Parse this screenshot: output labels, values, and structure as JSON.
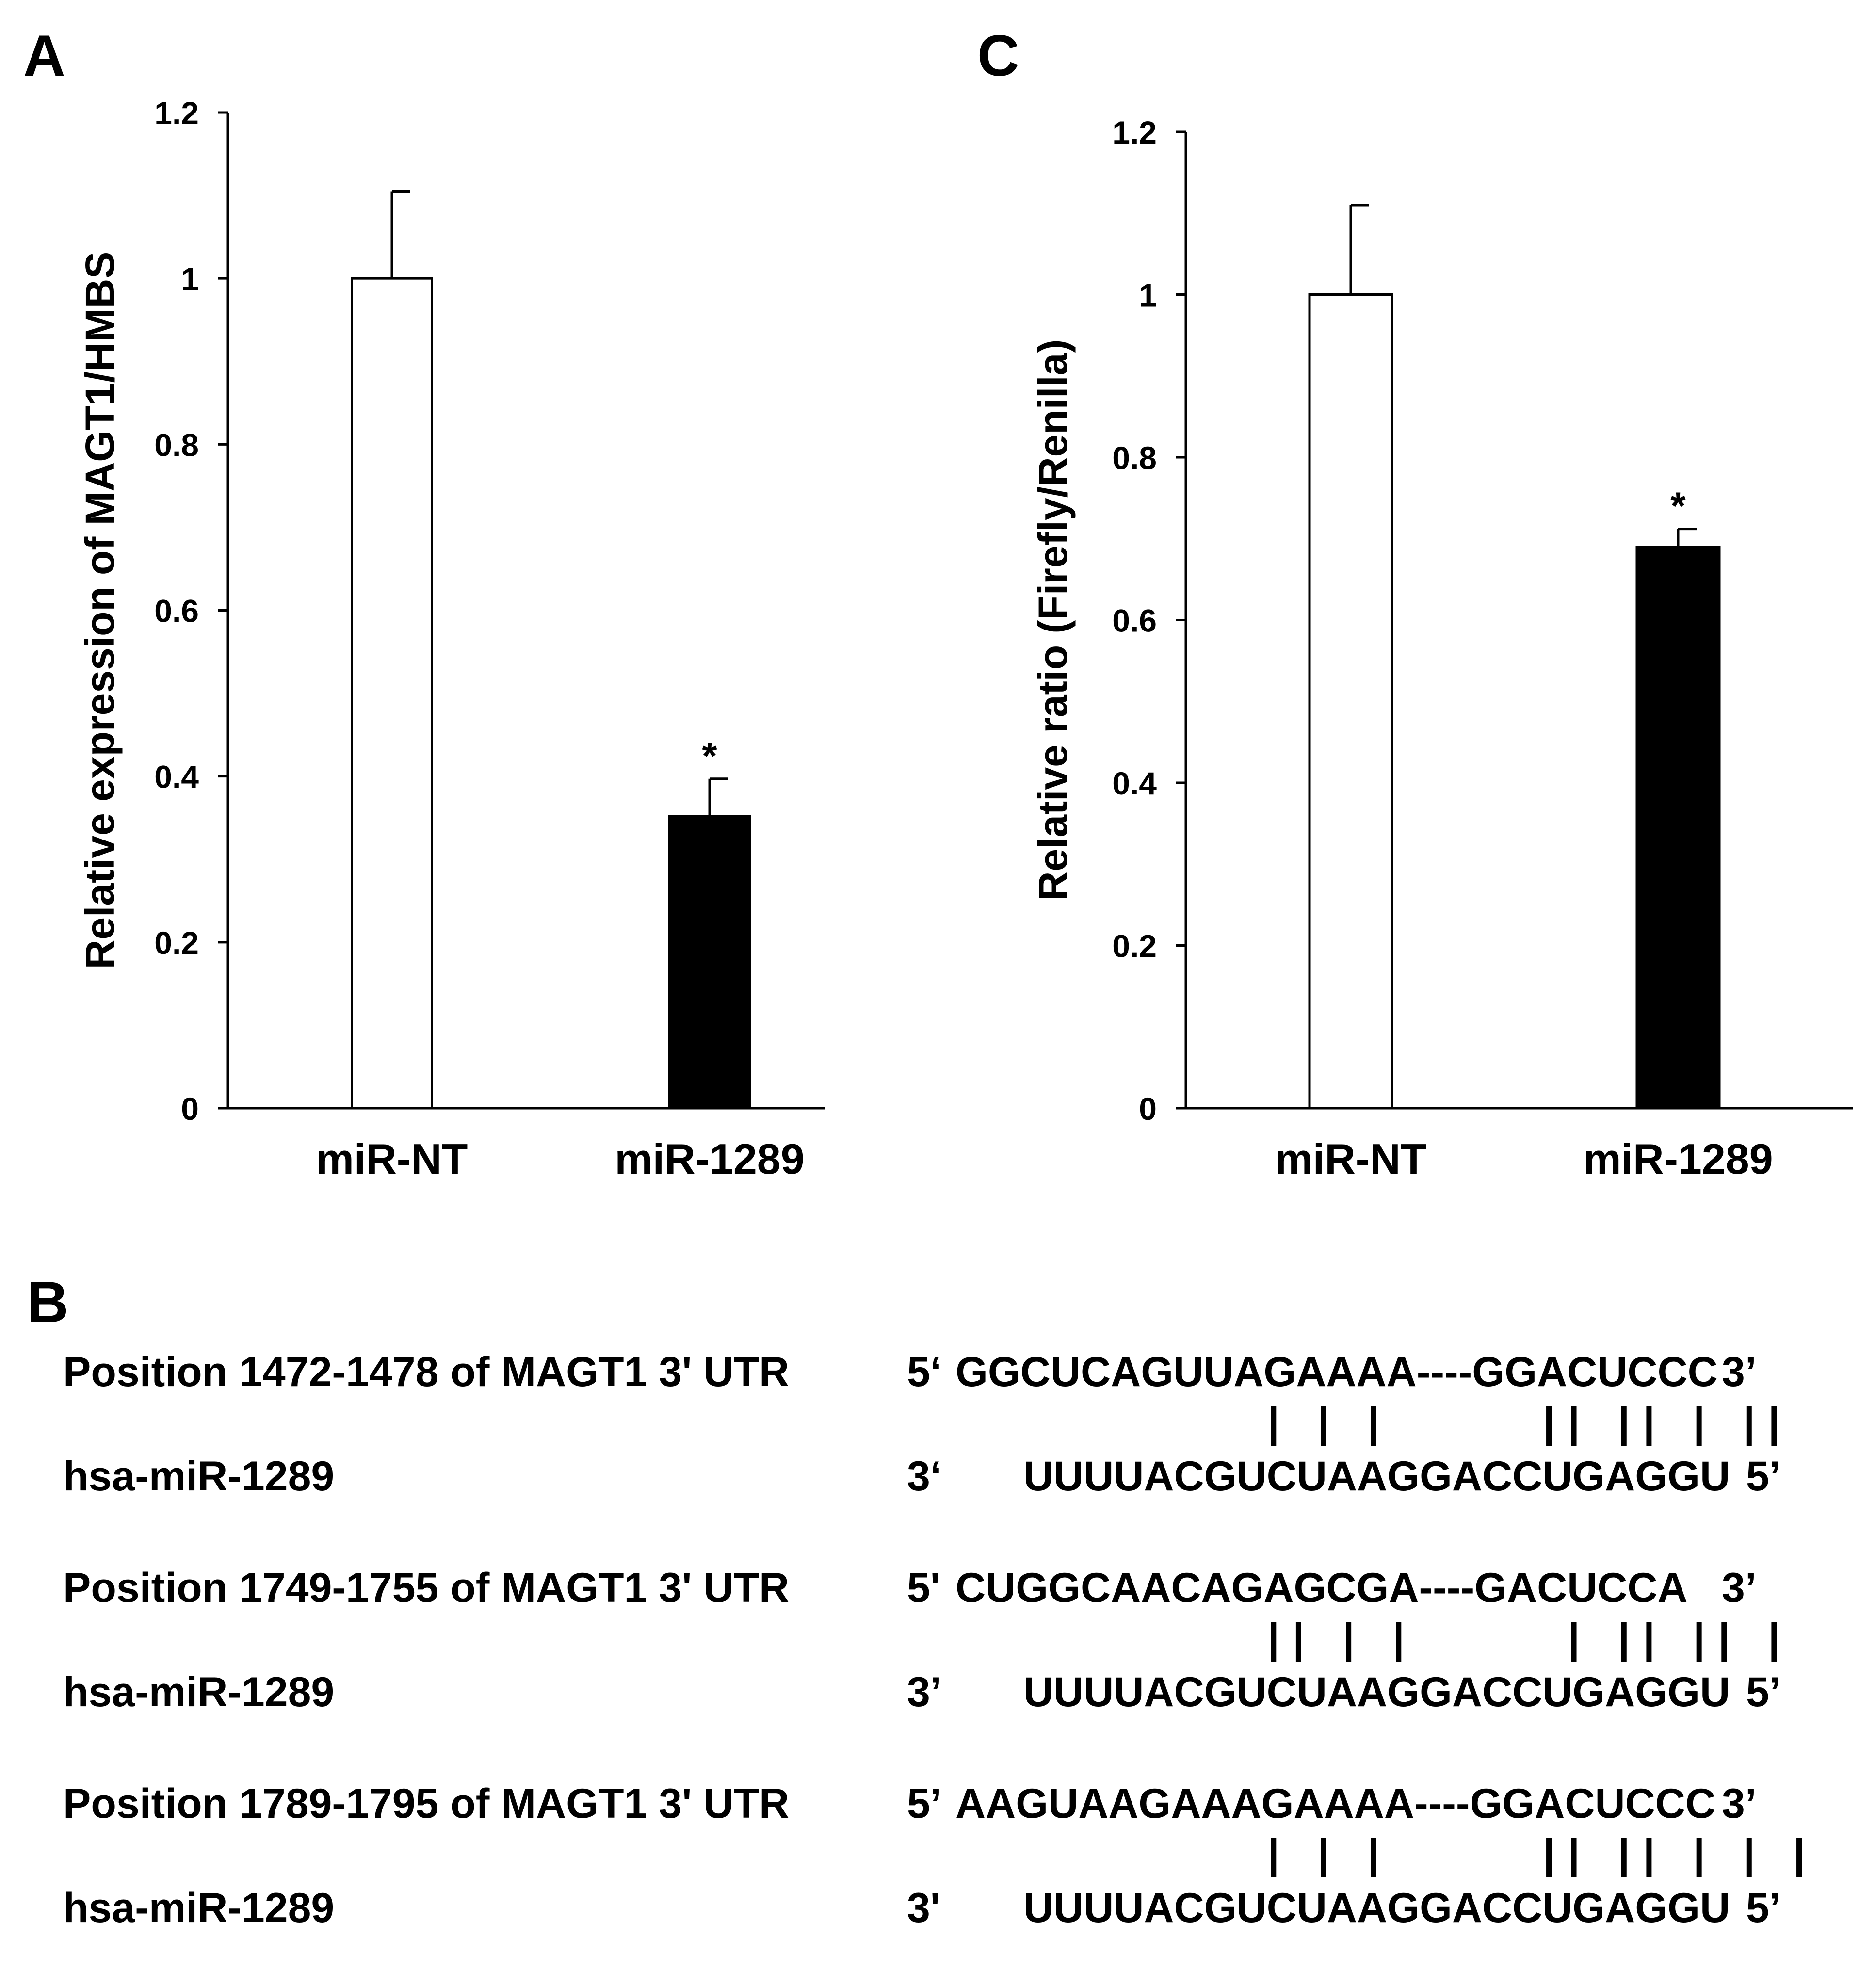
{
  "panels": {
    "a": "A",
    "b": "B",
    "c": "C"
  },
  "chart_data": [
    {
      "type": "bar",
      "panel": "A",
      "categories": [
        "miR-NT",
        "miR-1289"
      ],
      "values": [
        1.0,
        0.352
      ],
      "error_upper": [
        0.105,
        0.045
      ],
      "significance": [
        "",
        "*"
      ],
      "bar_colors": [
        "#ffffff",
        "#000000"
      ],
      "ylabel": "Relative expression of MAGT1/HMBS",
      "ylim": [
        0,
        1.2
      ],
      "yticks": [
        "0",
        "0.2",
        "0.4",
        "0.6",
        "0.8",
        "1",
        "1.2"
      ],
      "ytick_values": [
        0,
        0.2,
        0.4,
        0.6,
        0.8,
        1.0,
        1.2
      ],
      "grid": false
    },
    {
      "type": "bar",
      "panel": "C",
      "categories": [
        "miR-NT",
        "miR-1289"
      ],
      "values": [
        1.0,
        0.69
      ],
      "error_upper": [
        0.11,
        0.022
      ],
      "significance": [
        "",
        "*"
      ],
      "bar_colors": [
        "#ffffff",
        "#000000"
      ],
      "ylabel": "Relative ratio (Firefly/Renilla)",
      "ylim": [
        0,
        1.2
      ],
      "yticks": [
        "0",
        "0.2",
        "0.4",
        "0.6",
        "0.8",
        "1",
        "1.2"
      ],
      "ytick_values": [
        0,
        0.2,
        0.4,
        0.6,
        0.8,
        1.0,
        1.2
      ],
      "grid": false
    }
  ],
  "alignments": [
    {
      "utr_label": "Position 1472-1478 of MAGT1 3' UTR",
      "utr_start": "5‘",
      "utr_seq": "GGCUCAGUUAGAAAA----GGACUCCC",
      "utr_end": "3’",
      "pairs": "| | |      || || | ||",
      "mir_label": "hsa-miR-1289",
      "mir_start": "3‘",
      "mir_seq": "UUUUACGUCUAAGGACCUGAGGU",
      "mir_end": "5’"
    },
    {
      "utr_label": "Position 1749-1755 of MAGT1 3' UTR",
      "utr_start": "5'",
      "utr_seq": "CUGGCAACAGAGCGA----GACUCCA",
      "utr_end": "3’",
      "pairs": "|| | |      | || || |",
      "mir_label": "hsa-miR-1289",
      "mir_start": "3’",
      "mir_seq": "UUUUACGUCUAAGGACCUGAGGU",
      "mir_end": "5’"
    },
    {
      "utr_label": "Position 1789-1795 of MAGT1 3' UTR",
      "utr_start": "5’",
      "utr_seq": "AAGUAAGAAAGAAAA----GGACUCCC",
      "utr_end": "3’",
      "pairs": "| | |      || || | | |",
      "mir_label": "hsa-miR-1289",
      "mir_start": "3'",
      "mir_seq": "UUUUACGUCUAAGGACCUGAGGU",
      "mir_end": "5’"
    }
  ]
}
